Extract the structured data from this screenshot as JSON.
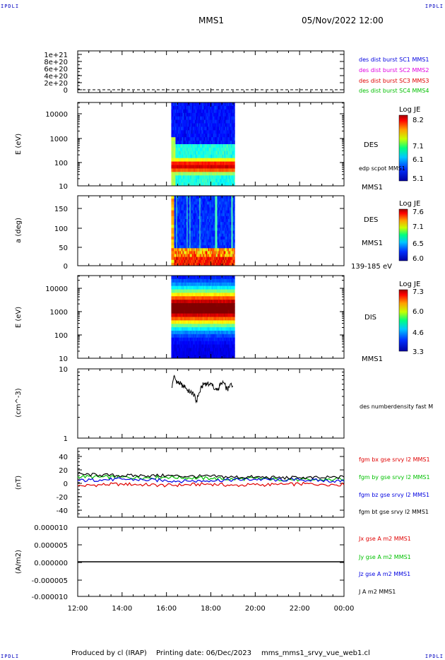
{
  "header": {
    "corner_tl": "IPDLI",
    "corner_tr": "IPDLI",
    "corner_bl": "IPDLI",
    "corner_br": "IPDLI",
    "spacecraft": "MMS1",
    "datetime": "05/Nov/2022 12:00"
  },
  "footer": {
    "produced": "Produced by cl (IRAP)",
    "printing": "Printing date: 06/Dec/2023",
    "file": "mms_mms1_srvy_vue_web1.cl"
  },
  "colors": {
    "red": "#e00000",
    "green": "#00c000",
    "blue": "#0000e0",
    "magenta": "#e000e0",
    "black": "#000000"
  },
  "chart_data": [
    {
      "id": "burst",
      "type": "line",
      "ylabel": "",
      "yticks": [
        "1e+21",
        "8e+20",
        "6e+20",
        "4e+20",
        "2e+20",
        "0"
      ],
      "ylim": [
        0,
        1e+21
      ],
      "legend": [
        {
          "text": "des dist burst SC1 MMS1",
          "color": "#0000e0"
        },
        {
          "text": "des dist burst SC2 MMS2",
          "color": "#e000e0"
        },
        {
          "text": "des dist burst SC3 MMS3",
          "color": "#e00000"
        },
        {
          "text": "des dist burst SC4 MMS4",
          "color": "#00c000"
        }
      ],
      "series": [
        {
          "x": [
            "12:00",
            "00:00"
          ],
          "values": [
            0,
            0
          ]
        }
      ]
    },
    {
      "id": "des_energy",
      "type": "heatmap",
      "ylabel": "E (eV)",
      "yscale": "log",
      "ylim": [
        10,
        20000
      ],
      "yticks": [
        "10000",
        "1000",
        "100",
        "10"
      ],
      "xrange": [
        "16:13",
        "19:05"
      ],
      "label1": "DES",
      "label2": "edp scpot MMS1",
      "label3": "MMS1",
      "colorbar": {
        "title": "Log JE",
        "ticks": [
          "8.2",
          "7.1",
          "6.1",
          "5.1"
        ]
      },
      "profile": {
        "peak_energy_eV": 60,
        "high_energy_floor_eV": 400
      }
    },
    {
      "id": "des_pitch",
      "type": "heatmap",
      "ylabel": "a (deg)",
      "ylim": [
        0,
        180
      ],
      "yticks": [
        "150",
        "100",
        "50",
        "0"
      ],
      "xrange": [
        "16:13",
        "19:05"
      ],
      "label1": "DES",
      "label2": "MMS1",
      "label3": "139-185 eV",
      "colorbar": {
        "title": "Log JE",
        "ticks": [
          "7.6",
          "7.1",
          "6.5",
          "6.0"
        ]
      }
    },
    {
      "id": "dis_energy",
      "type": "heatmap",
      "ylabel": "E (eV)",
      "yscale": "log",
      "ylim": [
        10,
        20000
      ],
      "yticks": [
        "10000",
        "1000",
        "100",
        "10"
      ],
      "xrange": [
        "16:13",
        "19:05"
      ],
      "label1": "DIS",
      "label2": "MMS1",
      "colorbar": {
        "title": "Log JE",
        "ticks": [
          "7.3",
          "6.0",
          "4.6",
          "3.3"
        ]
      },
      "profile": {
        "peak_energy_eV": 1000
      }
    },
    {
      "id": "density",
      "type": "line",
      "ylabel": "(cm^-3)",
      "yscale": "log",
      "ylim": [
        1,
        10
      ],
      "yticks": [
        "10",
        "1"
      ],
      "legend": [
        {
          "text": "des numberdensity fast M",
          "color": "#000000"
        }
      ],
      "series": [
        {
          "x": [
            "16:15",
            "16:20",
            "16:25",
            "16:30",
            "16:35",
            "16:40",
            "16:45",
            "16:50",
            "16:55",
            "17:00",
            "17:05",
            "17:10",
            "17:15",
            "17:20",
            "17:25",
            "17:30",
            "17:35",
            "17:40",
            "17:45",
            "17:50",
            "17:55",
            "18:00",
            "18:05",
            "18:10",
            "18:15",
            "18:20",
            "18:25",
            "18:30",
            "18:35",
            "18:40",
            "18:45",
            "18:50",
            "18:55",
            "19:00"
          ],
          "values": [
            5.3,
            7.8,
            6.9,
            6.4,
            6.2,
            6.0,
            5.6,
            5.8,
            5.0,
            4.8,
            4.6,
            4.5,
            4.2,
            3.3,
            4.0,
            4.6,
            5.4,
            6.0,
            6.2,
            6.0,
            5.9,
            6.1,
            6.0,
            5.0,
            4.9,
            5.2,
            5.8,
            6.0,
            6.3,
            5.5,
            5.0,
            5.4,
            6.2,
            5.6
          ]
        }
      ]
    },
    {
      "id": "fgm",
      "type": "line",
      "ylabel": "(nT)",
      "ylim": [
        -50,
        50
      ],
      "yticks": [
        "40",
        "20",
        "0",
        "-20",
        "-40"
      ],
      "legend": [
        {
          "text": "fgm bx gse srvy l2 MMS1",
          "color": "#e00000"
        },
        {
          "text": "fgm by gse srvy l2 MMS1",
          "color": "#00c000"
        },
        {
          "text": "fgm bz gse srvy l2 MMS1",
          "color": "#0000e0"
        },
        {
          "text": "fgm bt gse srvy l2 MMS1",
          "color": "#000000"
        }
      ],
      "series": [
        {
          "name": "fgm bx gse srvy l2 MMS1",
          "color": "#e00000",
          "x": [
            "12:00",
            "13:00",
            "14:00",
            "15:00",
            "16:00",
            "17:00",
            "18:00",
            "19:00",
            "20:00",
            "21:00",
            "22:00",
            "23:00",
            "00:00"
          ],
          "values": [
            -5,
            -3,
            -2,
            -3,
            -4,
            -3,
            -2,
            -4,
            -3,
            -3,
            -2,
            -2,
            -3
          ]
        },
        {
          "name": "fgm by gse srvy l2 MMS1",
          "color": "#00c000",
          "x": [
            "12:00",
            "13:00",
            "14:00",
            "15:00",
            "16:00",
            "17:00",
            "18:00",
            "19:00",
            "20:00",
            "21:00",
            "22:00",
            "23:00",
            "00:00"
          ],
          "values": [
            9,
            8,
            8,
            7,
            8,
            7,
            6,
            5,
            6,
            5,
            4,
            4,
            5
          ]
        },
        {
          "name": "fgm bz gse srvy l2 MMS1",
          "color": "#0000e0",
          "x": [
            "12:00",
            "13:00",
            "14:00",
            "15:00",
            "16:00",
            "17:00",
            "18:00",
            "19:00",
            "20:00",
            "21:00",
            "22:00",
            "23:00",
            "00:00"
          ],
          "values": [
            3,
            4,
            5,
            4,
            3,
            2,
            3,
            4,
            5,
            4,
            4,
            3,
            2
          ]
        },
        {
          "name": "fgm bt gse srvy l2 MMS1",
          "color": "#000000",
          "x": [
            "12:00",
            "13:00",
            "14:00",
            "15:00",
            "16:00",
            "17:00",
            "18:00",
            "19:00",
            "20:00",
            "21:00",
            "22:00",
            "23:00",
            "00:00"
          ],
          "values": [
            12,
            11,
            10,
            10,
            10,
            9,
            9,
            8,
            8,
            7,
            7,
            7,
            8
          ]
        }
      ]
    },
    {
      "id": "current",
      "type": "line",
      "ylabel": "(A/m2)",
      "ylim": [
        -1e-05,
        1e-05
      ],
      "yticks": [
        "0.000010",
        "0.000005",
        "0.000000",
        "-0.000005",
        "-0.000010"
      ],
      "xticks": [
        "12:00",
        "14:00",
        "16:00",
        "18:00",
        "20:00",
        "22:00",
        "00:00"
      ],
      "legend": [
        {
          "text": "Jx gse A m2 MMS1",
          "color": "#e00000"
        },
        {
          "text": "Jy gse A m2 MMS1",
          "color": "#00c000"
        },
        {
          "text": "Jz gse A m2 MMS1",
          "color": "#0000e0"
        },
        {
          "text": "J A m2 MMS1",
          "color": "#000000"
        }
      ],
      "series": [
        {
          "x": [
            "12:00",
            "00:00"
          ],
          "values": [
            0,
            0
          ]
        }
      ]
    }
  ]
}
